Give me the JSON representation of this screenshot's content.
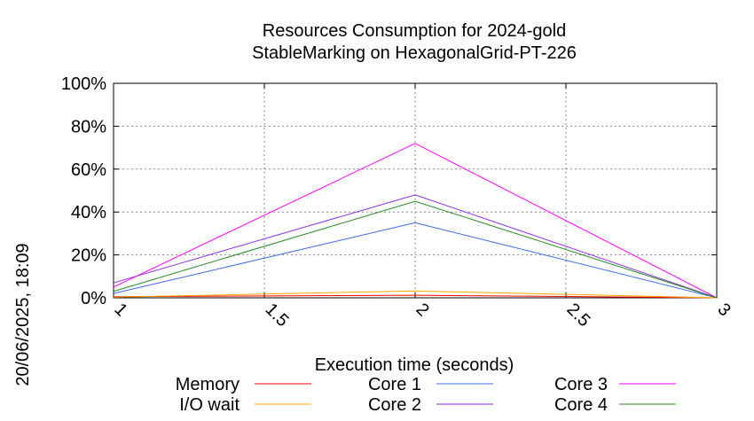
{
  "chart_data": {
    "type": "line",
    "title": [
      "Resources Consumption for 2024-gold",
      "StableMarking on HexagonalGrid-PT-226"
    ],
    "xlabel": "Execution time (seconds)",
    "ylabel": "",
    "xlim": [
      1,
      3
    ],
    "ylim": [
      0,
      100
    ],
    "x_ticks": [
      1,
      1.5,
      2,
      2.5,
      3
    ],
    "x_tick_labels": [
      "1",
      "1.5",
      "2",
      "2.5",
      "3"
    ],
    "y_ticks": [
      0,
      20,
      40,
      60,
      80,
      100
    ],
    "y_tick_labels": [
      "0%",
      "20%",
      "40%",
      "60%",
      "80%",
      "100%"
    ],
    "grid": true,
    "legend_position": "bottom",
    "side_label": "20/06/2025, 18:09",
    "x": [
      1,
      2,
      3
    ],
    "series": [
      {
        "name": "Memory",
        "color": "#ff0000",
        "values": [
          0.5,
          1.2,
          0
        ]
      },
      {
        "name": "I/O wait",
        "color": "#ffa500",
        "values": [
          0.3,
          3.2,
          0
        ]
      },
      {
        "name": "Core 1",
        "color": "#4169e1",
        "values": [
          2,
          35,
          0
        ]
      },
      {
        "name": "Core 2",
        "color": "#8a2be2",
        "values": [
          7,
          48,
          0
        ]
      },
      {
        "name": "Core 3",
        "color": "#ff00ff",
        "values": [
          5,
          72,
          0
        ]
      },
      {
        "name": "Core 4",
        "color": "#228b22",
        "values": [
          3,
          45,
          0
        ]
      }
    ]
  }
}
